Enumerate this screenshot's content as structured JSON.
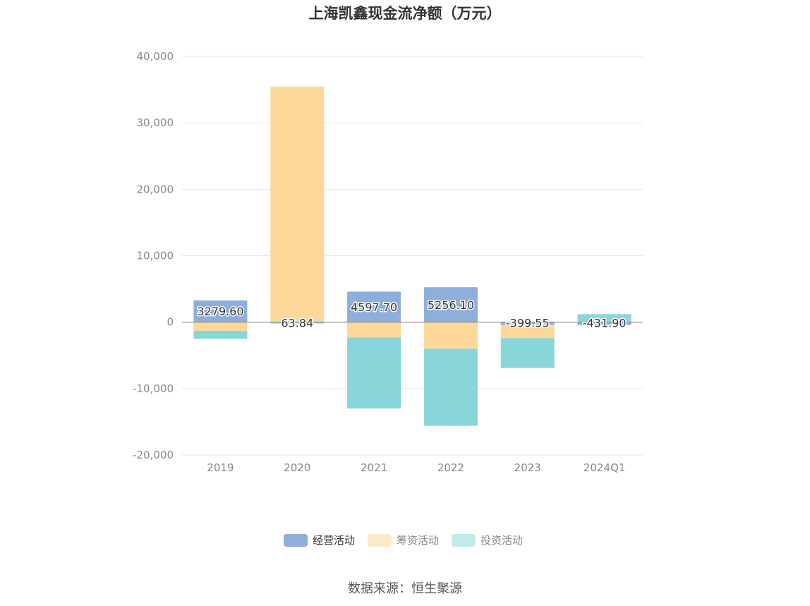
{
  "chart_data": {
    "type": "bar",
    "stacked": true,
    "title": "上海凯鑫现金流净额（万元）",
    "categories": [
      "2019",
      "2020",
      "2021",
      "2022",
      "2023",
      "2024Q1"
    ],
    "series": [
      {
        "name": "经营活动",
        "color": "#8eaedc",
        "values": [
          3279.6,
          63.84,
          4597.7,
          5256.1,
          -399.55,
          -431.9
        ],
        "labels": [
          "3279.60",
          "63.84",
          "4597.70",
          "5256.10",
          "-399.55",
          "-431.90"
        ]
      },
      {
        "name": "筹资活动",
        "color": "#fdd89a",
        "values": [
          -1300,
          35400,
          -2300,
          -4000,
          -2000,
          0
        ]
      },
      {
        "name": "投资活动",
        "color": "#88d6d9",
        "values": [
          -1200,
          -200,
          -10700,
          -11600,
          -4500,
          1200
        ]
      }
    ],
    "ylim": [
      -20000,
      40000
    ],
    "yticks": [
      40000,
      30000,
      20000,
      10000,
      0,
      -10000,
      -20000
    ],
    "ytick_labels": [
      "40,000",
      "30,000",
      "20,000",
      "10,000",
      "0",
      "-10,000",
      "-20,000"
    ],
    "grid": true,
    "legend_position": "bottom",
    "legend_active": [
      "经营活动"
    ],
    "source": "数据来源：恒生聚源"
  }
}
